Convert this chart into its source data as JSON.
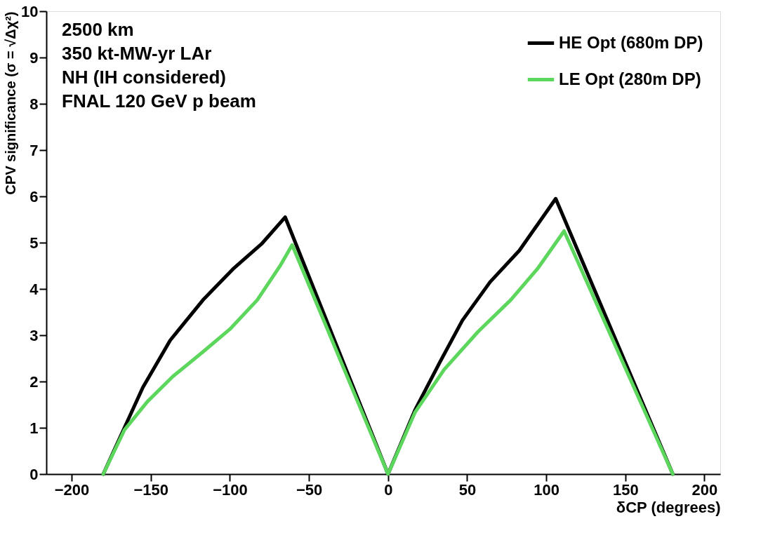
{
  "chart_data": {
    "type": "line",
    "xlabel": "δCP (degrees)",
    "ylabel": "CPV significance (σ = √Δχ²)",
    "xlim": [
      -216,
      210
    ],
    "xticks": [
      -200,
      -150,
      -100,
      -50,
      0,
      50,
      100,
      150,
      200
    ],
    "ylim": [
      0,
      10
    ],
    "yticks": [
      0,
      1,
      2,
      3,
      4,
      5,
      6,
      7,
      8,
      9,
      10
    ],
    "grid": false,
    "legend": "top right",
    "line_style": "solid",
    "annotations": [
      "2500 km",
      "350 kt-MW-yr LAr",
      "NH (IH considered)",
      "FNAL 120 GeV p beam"
    ],
    "series": [
      {
        "name": "HE Opt (680m DP)",
        "color": "#000000",
        "x": [
          -180,
          -155,
          -137.7,
          -117,
          -97.4,
          -80,
          -65,
          0,
          17,
          32.5,
          47,
          64.5,
          83,
          106,
          180
        ],
        "values": [
          0,
          1.87,
          2.89,
          3.76,
          4.45,
          4.97,
          5.55,
          0,
          1.38,
          2.4,
          3.32,
          4.15,
          4.83,
          5.95,
          0
        ]
      },
      {
        "name": "LE Opt (280m DP)",
        "color": "#5cd65c",
        "x": [
          -180,
          -166.7,
          -152,
          -136,
          -117,
          -100,
          -82.7,
          -68.4,
          -60.6,
          0,
          17,
          35.5,
          57,
          77.5,
          94.8,
          111.3,
          180
        ],
        "values": [
          0,
          0.95,
          1.57,
          2.11,
          2.64,
          3.13,
          3.76,
          4.49,
          4.95,
          0,
          1.33,
          2.26,
          3.08,
          3.76,
          4.45,
          5.25,
          0
        ]
      }
    ]
  }
}
